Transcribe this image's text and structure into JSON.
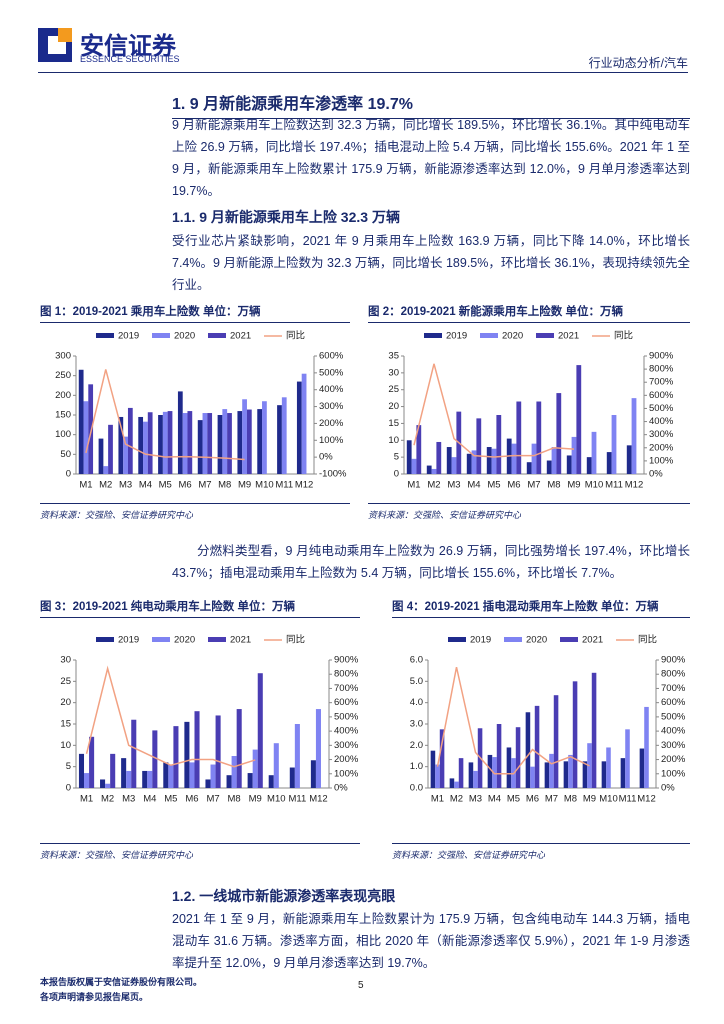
{
  "header": {
    "logo_cn": "安信证券",
    "logo_en": "ESSENCE SECURITIES",
    "category": "行业动态分析/汽车"
  },
  "sections": [
    {
      "heading": "1. 9 月新能源乘用车渗透率 19.7%",
      "paragraph": "9 月新能源乘用车上险数达到 32.3 万辆，同比增长 189.5%，环比增长 36.1%。其中纯电动车上险 26.9 万辆，同比增长 197.4%；插电混动上险 5.4 万辆，同比增长 155.6%。2021 年 1 至 9 月，新能源乘用车上险数累计 175.9 万辆，新能源渗透率达到 12.0%，9 月单月渗透率达到 19.7%。"
    },
    {
      "heading": "1.1. 9 月新能源乘用车上险 32.3 万辆",
      "paragraph": "受行业芯片紧缺影响，2021 年 9 月乘用车上险数 163.9 万辆，同比下降 14.0%，环比增长 7.4%。9 月新能源上险数为 32.3 万辆，同比增长 189.5%，环比增长 36.1%，表现持续领先全行业。",
      "paragraph2": "分燃料类型看，9 月纯电动乘用车上险数为 26.9 万辆，同比强势增长 197.4%，环比增长 43.7%；插电混动乘用车上险数为 5.4 万辆，同比增长 155.6%，环比增长 7.7%。"
    },
    {
      "heading": "1.2. 一线城市新能源渗透率表现亮眼",
      "paragraph": "2021 年 1 至 9 月，新能源乘用车上险数累计为 175.9 万辆，包含纯电动车 144.3 万辆，插电混动车 31.6 万辆。渗透率方面，相比 2020 年（新能源渗透率仅 5.9%），2021 年 1-9 月渗透率提升至 12.0%，9 月单月渗透率达到 19.7%。"
    }
  ],
  "chart_data": [
    {
      "type": "bar",
      "title": "图 1：2019-2021 乘用车上险数 单位：万辆",
      "source": "资料来源：交强险、安信证券研究中心",
      "categories": [
        "M1",
        "M2",
        "M3",
        "M4",
        "M5",
        "M6",
        "M7",
        "M8",
        "M9",
        "M10",
        "M11",
        "M12"
      ],
      "series": [
        {
          "name": "2019",
          "color": "#1f2a8c",
          "values": [
            265,
            90,
            145,
            145,
            150,
            210,
            137,
            150,
            160,
            165,
            175,
            235
          ]
        },
        {
          "name": "2020",
          "color": "#7f83f2",
          "values": [
            185,
            20,
            95,
            133,
            158,
            155,
            155,
            165,
            190,
            185,
            195,
            255
          ]
        },
        {
          "name": "2021",
          "color": "#4a3db3",
          "values": [
            228,
            125,
            168,
            157,
            160,
            160,
            155,
            155,
            163.9,
            null,
            null,
            null
          ]
        },
        {
          "name": "同比",
          "color": "#f2a283",
          "axis": "y2",
          "values": [
            25,
            520,
            77,
            18,
            1,
            3,
            -1,
            -6,
            -14,
            null,
            null,
            null
          ]
        }
      ],
      "ylim": [
        0,
        300
      ],
      "yticks": [
        0,
        50,
        100,
        150,
        200,
        250,
        300
      ],
      "y2lim": [
        -100,
        600
      ],
      "y2ticks": [
        {
          "value": -100,
          "label": "-100%"
        },
        {
          "value": 0,
          "label": "0%"
        },
        {
          "value": 100,
          "label": "100%"
        },
        {
          "value": 200,
          "label": "200%"
        },
        {
          "value": 300,
          "label": "300%"
        },
        {
          "value": 400,
          "label": "400%"
        },
        {
          "value": 500,
          "label": "500%"
        },
        {
          "value": 600,
          "label": "600%"
        }
      ]
    },
    {
      "type": "bar",
      "title": "图 2：2019-2021 新能源乘用车上险数 单位：万辆",
      "source": "资料来源：交强险、安信证券研究中心",
      "categories": [
        "M1",
        "M2",
        "M3",
        "M4",
        "M5",
        "M6",
        "M7",
        "M8",
        "M9",
        "M10",
        "M11",
        "M12"
      ],
      "series": [
        {
          "name": "2019",
          "color": "#1f2a8c",
          "values": [
            10,
            2.5,
            8,
            6,
            8,
            10.5,
            3.5,
            4,
            5.5,
            5,
            6.5,
            8.5
          ]
        },
        {
          "name": "2020",
          "color": "#7f83f2",
          "values": [
            4.5,
            1.5,
            5,
            7,
            7.5,
            9,
            9,
            8,
            11,
            12.5,
            17.5,
            22.5
          ]
        },
        {
          "name": "2021",
          "color": "#4a3db3",
          "values": [
            14.5,
            9.5,
            18.5,
            16.5,
            17.5,
            21.5,
            21.5,
            24,
            32.3,
            null,
            null,
            null
          ]
        },
        {
          "name": "同比",
          "color": "#f2a283",
          "axis": "y2",
          "values": [
            220,
            840,
            270,
            140,
            130,
            140,
            140,
            200,
            189.5,
            null,
            null,
            null
          ]
        }
      ],
      "ylim": [
        0,
        35
      ],
      "yticks": [
        0,
        5,
        10,
        15,
        20,
        25,
        30,
        35
      ],
      "y2lim": [
        0,
        900
      ],
      "y2ticks": [
        {
          "value": 0,
          "label": "0%"
        },
        {
          "value": 100,
          "label": "100%"
        },
        {
          "value": 200,
          "label": "200%"
        },
        {
          "value": 300,
          "label": "300%"
        },
        {
          "value": 400,
          "label": "400%"
        },
        {
          "value": 500,
          "label": "500%"
        },
        {
          "value": 600,
          "label": "600%"
        },
        {
          "value": 700,
          "label": "700%"
        },
        {
          "value": 800,
          "label": "800%"
        },
        {
          "value": 900,
          "label": "900%"
        }
      ]
    },
    {
      "type": "bar",
      "title": "图 3：2019-2021 纯电动乘用车上险数 单位：万辆",
      "source": "资料来源：交强险、安信证券研究中心",
      "categories": [
        "M1",
        "M2",
        "M3",
        "M4",
        "M5",
        "M6",
        "M7",
        "M8",
        "M9",
        "M10",
        "M11",
        "M12"
      ],
      "series": [
        {
          "name": "2019",
          "color": "#1f2a8c",
          "values": [
            8,
            2,
            7,
            4,
            6,
            15.5,
            2,
            3,
            3.5,
            3,
            4.8,
            6.5
          ]
        },
        {
          "name": "2020",
          "color": "#7f83f2",
          "values": [
            3.5,
            1,
            4,
            4,
            5.5,
            6,
            5.5,
            7.5,
            9,
            10.5,
            15,
            18.5
          ]
        },
        {
          "name": "2021",
          "color": "#4a3db3",
          "values": [
            12,
            8,
            16,
            13.5,
            14.5,
            18,
            17,
            18.5,
            26.9,
            null,
            null,
            null
          ]
        },
        {
          "name": "同比",
          "color": "#f2a283",
          "axis": "y2",
          "values": [
            240,
            840,
            300,
            230,
            160,
            200,
            200,
            150,
            197.4,
            null,
            null,
            null
          ]
        }
      ],
      "ylim": [
        0,
        30
      ],
      "yticks": [
        0,
        5,
        10,
        15,
        20,
        25,
        30
      ],
      "y2lim": [
        0,
        900
      ],
      "y2ticks": [
        {
          "value": 0,
          "label": "0%"
        },
        {
          "value": 100,
          "label": "100%"
        },
        {
          "value": 200,
          "label": "200%"
        },
        {
          "value": 300,
          "label": "300%"
        },
        {
          "value": 400,
          "label": "400%"
        },
        {
          "value": 500,
          "label": "500%"
        },
        {
          "value": 600,
          "label": "600%"
        },
        {
          "value": 700,
          "label": "700%"
        },
        {
          "value": 800,
          "label": "800%"
        },
        {
          "value": 900,
          "label": "900%"
        }
      ]
    },
    {
      "type": "bar",
      "title": "图 4：2019-2021 插电混动乘用车上险数 单位：万辆",
      "source": "资料来源：交强险、安信证券研究中心",
      "categories": [
        "M1",
        "M2",
        "M3",
        "M4",
        "M5",
        "M6",
        "M7",
        "M8",
        "M9",
        "M10",
        "M11",
        "M12"
      ],
      "series": [
        {
          "name": "2019",
          "color": "#1f2a8c",
          "values": [
            1.75,
            0.45,
            1.2,
            1.55,
            1.9,
            3.55,
            1.2,
            1.25,
            1.25,
            1.25,
            1.4,
            1.85
          ]
        },
        {
          "name": "2020",
          "color": "#7f83f2",
          "values": [
            1.1,
            0.3,
            0.8,
            1.45,
            1.4,
            1.0,
            1.6,
            1.55,
            2.1,
            1.9,
            2.75,
            3.8
          ]
        },
        {
          "name": "2021",
          "color": "#4a3db3",
          "values": [
            2.75,
            1.4,
            2.8,
            3.0,
            2.85,
            3.85,
            4.35,
            5.0,
            5.4,
            null,
            null,
            null
          ]
        },
        {
          "name": "同比",
          "color": "#f2a283",
          "axis": "y2",
          "values": [
            150,
            850,
            250,
            100,
            100,
            270,
            170,
            220,
            155.6,
            null,
            null,
            null
          ]
        }
      ],
      "ylim": [
        0,
        6
      ],
      "yticks": [
        {
          "value": 0,
          "label": "0.0"
        },
        {
          "value": 1,
          "label": "1.0"
        },
        {
          "value": 2,
          "label": "2.0"
        },
        {
          "value": 3,
          "label": "3.0"
        },
        {
          "value": 4,
          "label": "4.0"
        },
        {
          "value": 5,
          "label": "5.0"
        },
        {
          "value": 6,
          "label": "6.0"
        }
      ],
      "y2lim": [
        0,
        900
      ],
      "y2ticks": [
        {
          "value": 0,
          "label": "0%"
        },
        {
          "value": 100,
          "label": "100%"
        },
        {
          "value": 200,
          "label": "200%"
        },
        {
          "value": 300,
          "label": "300%"
        },
        {
          "value": 400,
          "label": "400%"
        },
        {
          "value": 500,
          "label": "500%"
        },
        {
          "value": 600,
          "label": "600%"
        },
        {
          "value": 700,
          "label": "700%"
        },
        {
          "value": 800,
          "label": "800%"
        },
        {
          "value": 900,
          "label": "900%"
        }
      ]
    }
  ],
  "footer": {
    "line1": "本报告版权属于安信证券股份有限公司。",
    "line2": "各项声明请参见报告尾页。",
    "page": "5"
  }
}
